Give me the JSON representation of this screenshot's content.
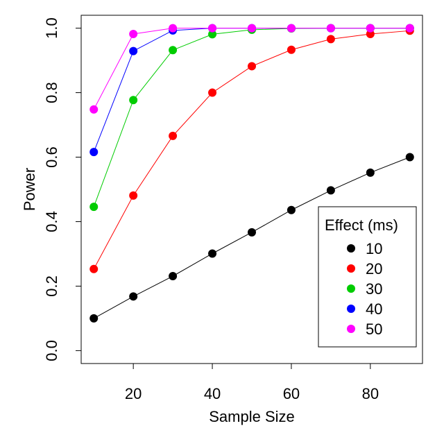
{
  "chart_data": {
    "type": "line",
    "title": "",
    "xlabel": "Sample Size",
    "ylabel": "Power",
    "x": [
      10,
      20,
      30,
      40,
      50,
      60,
      70,
      80,
      90
    ],
    "xlim": [
      6.8,
      93.2
    ],
    "ylim": [
      -0.04,
      1.04
    ],
    "x_ticks": [
      "20",
      "40",
      "60",
      "80"
    ],
    "x_tick_values": [
      20,
      40,
      60,
      80
    ],
    "y_ticks": [
      "0.0",
      "0.2",
      "0.4",
      "0.6",
      "0.8",
      "1.0"
    ],
    "y_tick_values": [
      0.0,
      0.2,
      0.4,
      0.6,
      0.8,
      1.0
    ],
    "grid": false,
    "legend": {
      "title": "Effect (ms)",
      "position": "bottom-right"
    },
    "series": [
      {
        "name": "10",
        "color": "#000000",
        "values": [
          0.1,
          0.168,
          0.231,
          0.301,
          0.367,
          0.436,
          0.497,
          0.552,
          0.6
        ]
      },
      {
        "name": "20",
        "color": "#ff0000",
        "values": [
          0.253,
          0.481,
          0.666,
          0.8,
          0.882,
          0.933,
          0.966,
          0.982,
          0.992
        ]
      },
      {
        "name": "30",
        "color": "#00cc00",
        "values": [
          0.446,
          0.777,
          0.932,
          0.981,
          0.995,
          0.999,
          1.0,
          1.0,
          1.0
        ]
      },
      {
        "name": "40",
        "color": "#0000ff",
        "values": [
          0.616,
          0.929,
          0.993,
          1.0,
          1.0,
          1.0,
          1.0,
          1.0,
          1.0
        ]
      },
      {
        "name": "50",
        "color": "#ff00ff",
        "values": [
          0.748,
          0.982,
          1.0,
          1.0,
          1.0,
          1.0,
          1.0,
          1.0,
          1.0
        ]
      }
    ]
  }
}
